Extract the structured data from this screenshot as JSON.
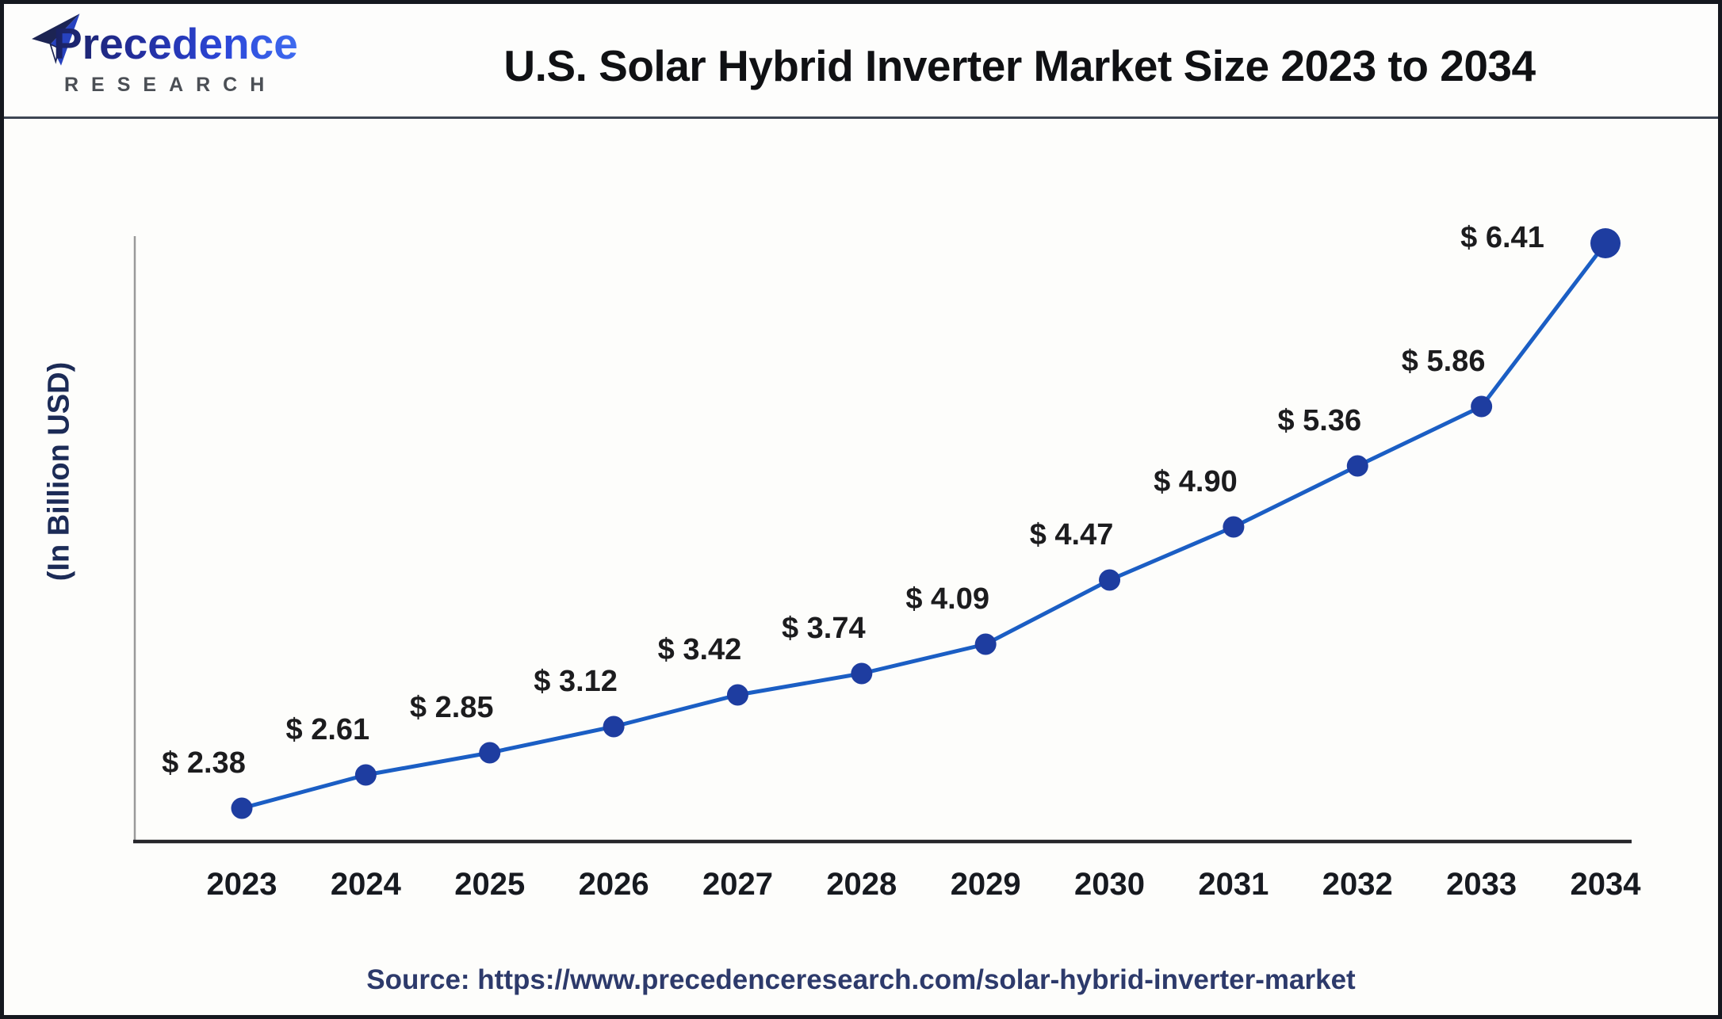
{
  "header": {
    "logo": {
      "name": "Precedence",
      "subname": "RESEARCH",
      "icon": "paper-plane-icon"
    },
    "title": "U.S. Solar Hybrid Inverter Market Size 2023 to 2034"
  },
  "chart_data": {
    "type": "line",
    "title": "U.S. Solar Hybrid Inverter Market Size 2023 to 2034",
    "xlabel": "",
    "ylabel": "(In Billion USD)",
    "categories": [
      "2023",
      "2024",
      "2025",
      "2026",
      "2027",
      "2028",
      "2029",
      "2030",
      "2031",
      "2032",
      "2033",
      "2034"
    ],
    "series": [
      {
        "name": "U.S. Solar Hybrid Inverter Market Size",
        "values": [
          2.38,
          2.61,
          2.85,
          3.12,
          3.42,
          3.74,
          4.09,
          4.47,
          4.9,
          5.36,
          5.86,
          6.41
        ]
      }
    ],
    "point_labels": [
      "$ 2.38",
      "$ 2.61",
      "$ 2.85",
      "$ 3.12",
      "$ 3.42",
      "$ 3.74",
      "$ 4.09",
      "$ 4.47",
      "$ 4.90",
      "$ 5.36",
      "$ 5.86",
      "$ 6.41"
    ],
    "units": "Billion USD",
    "grid": false,
    "legend": false,
    "line_color": "#1b5ec4",
    "marker_color": "#1e3da0",
    "label_color": "#1c1c1e",
    "x_axis_color": "#26262a",
    "y_axis_color": "#9a9a9a"
  },
  "footer": {
    "source": "Source: https://www.precedenceresearch.com/solar-hybrid-inverter-market"
  }
}
